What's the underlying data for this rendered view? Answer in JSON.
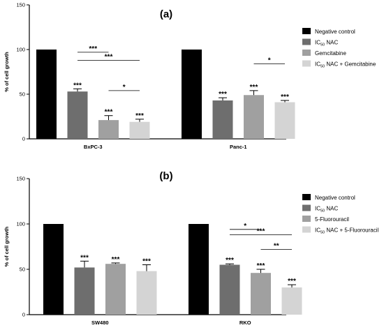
{
  "chart_data": [
    {
      "type": "bar",
      "title": "(a)",
      "xlabel": "",
      "ylabel": "% of cell growth",
      "ylim": [
        0,
        150
      ],
      "yticks": [
        "0",
        "50",
        "100",
        "150"
      ],
      "categories": [
        "BxPC-3",
        "Panc-1"
      ],
      "series": [
        {
          "name": "Negative control",
          "color": "#000000",
          "values": [
            100,
            100
          ],
          "errors": [
            0,
            0
          ],
          "stars": [
            "",
            ""
          ]
        },
        {
          "name": "IC50 NAC",
          "color": "#6e6e6e",
          "values": [
            53,
            43
          ],
          "errors": [
            3,
            3
          ],
          "stars": [
            "***",
            "***"
          ]
        },
        {
          "name": "Gemcitabine",
          "color": "#a0a0a0",
          "values": [
            21,
            49
          ],
          "errors": [
            5,
            5
          ],
          "stars": [
            "***",
            "***"
          ]
        },
        {
          "name": "IC50 NAC + Gemcitabine",
          "color": "#d4d4d4",
          "values": [
            19,
            41
          ],
          "errors": [
            3,
            2
          ],
          "stars": [
            "***",
            "***"
          ]
        }
      ],
      "comparisons": [
        {
          "group": 0,
          "from": 1,
          "to": 2,
          "label": "***"
        },
        {
          "group": 0,
          "from": 1,
          "to": 3,
          "label": "***"
        },
        {
          "group": 0,
          "from": 2,
          "to": 3,
          "label": "*"
        },
        {
          "group": 1,
          "from": 2,
          "to": 3,
          "label": "*"
        }
      ]
    },
    {
      "type": "bar",
      "title": "(b)",
      "xlabel": "",
      "ylabel": "% of cell growth",
      "ylim": [
        0,
        150
      ],
      "yticks": [
        "0",
        "50",
        "100",
        "150"
      ],
      "categories": [
        "SW480",
        "RKO"
      ],
      "series": [
        {
          "name": "Negative control",
          "color": "#000000",
          "values": [
            100,
            100
          ],
          "errors": [
            0,
            0
          ],
          "stars": [
            "",
            ""
          ]
        },
        {
          "name": "IC50 NAC",
          "color": "#6e6e6e",
          "values": [
            52,
            55
          ],
          "errors": [
            7,
            1
          ],
          "stars": [
            "***",
            "***"
          ]
        },
        {
          "name": "5-Fluorouracil",
          "color": "#a0a0a0",
          "values": [
            56,
            46
          ],
          "errors": [
            1,
            4
          ],
          "stars": [
            "***",
            "***"
          ]
        },
        {
          "name": "IC50 NAC + 5-Fluorouracil",
          "color": "#d4d4d4",
          "values": [
            48,
            30
          ],
          "errors": [
            7,
            3
          ],
          "stars": [
            "***",
            "***"
          ]
        }
      ],
      "comparisons": [
        {
          "group": 1,
          "from": 1,
          "to": 2,
          "label": "*"
        },
        {
          "group": 1,
          "from": 1,
          "to": 3,
          "label": "***"
        },
        {
          "group": 1,
          "from": 2,
          "to": 3,
          "label": "**"
        }
      ]
    }
  ]
}
